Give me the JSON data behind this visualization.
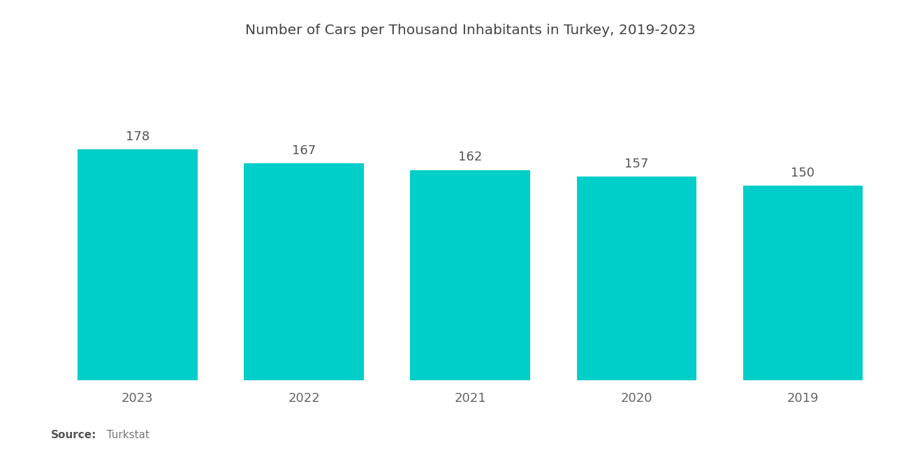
{
  "title": "Number of Cars per Thousand Inhabitants in Turkey, 2019-2023",
  "categories": [
    "2023",
    "2022",
    "2021",
    "2020",
    "2019"
  ],
  "values": [
    178,
    167,
    162,
    157,
    150
  ],
  "bar_color": "#00CEC9",
  "background_color": "#ffffff",
  "title_fontsize": 14.5,
  "label_fontsize": 13,
  "tick_fontsize": 13,
  "source_bold": "Source:",
  "source_normal": "  Turkstat",
  "ylim": [
    0,
    250
  ],
  "bar_width": 0.72
}
